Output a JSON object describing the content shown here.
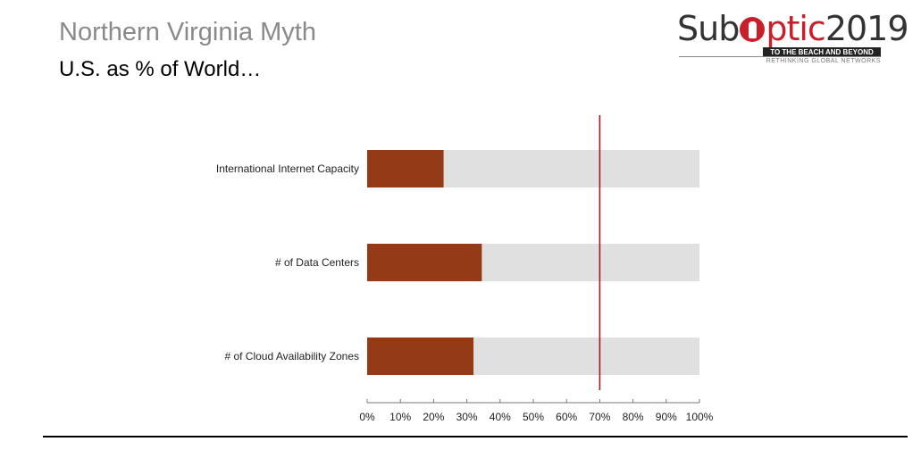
{
  "slide": {
    "title": "Northern Virginia Myth",
    "subtitle": "U.S. as % of World…"
  },
  "logo": {
    "part1": "Sub",
    "part2": "ptic",
    "year": "2019",
    "tagline": "TO THE BEACH AND BEYOND",
    "subline": "RETHINKING GLOBAL NETWORKS",
    "icon": "globe-pin-icon"
  },
  "colors": {
    "bar": "#943a16",
    "track": "#e0e0e0",
    "marker": "#a51b1b",
    "title": "#8a8a8a",
    "brand_red": "#c7202a"
  },
  "chart_data": {
    "type": "bar",
    "orientation": "horizontal",
    "title": "",
    "xlabel": "",
    "ylabel": "",
    "categories": [
      "International Internet Capacity",
      "# of Data Centers",
      "# of Cloud Availability Zones"
    ],
    "values": [
      23,
      34.5,
      32
    ],
    "xlim": [
      0,
      100
    ],
    "ticks": [
      "0%",
      "10%",
      "20%",
      "30%",
      "40%",
      "50%",
      "60%",
      "70%",
      "80%",
      "90%",
      "100%"
    ],
    "reference_line": 70,
    "background_track": 100,
    "grid": false,
    "legend": "none"
  }
}
